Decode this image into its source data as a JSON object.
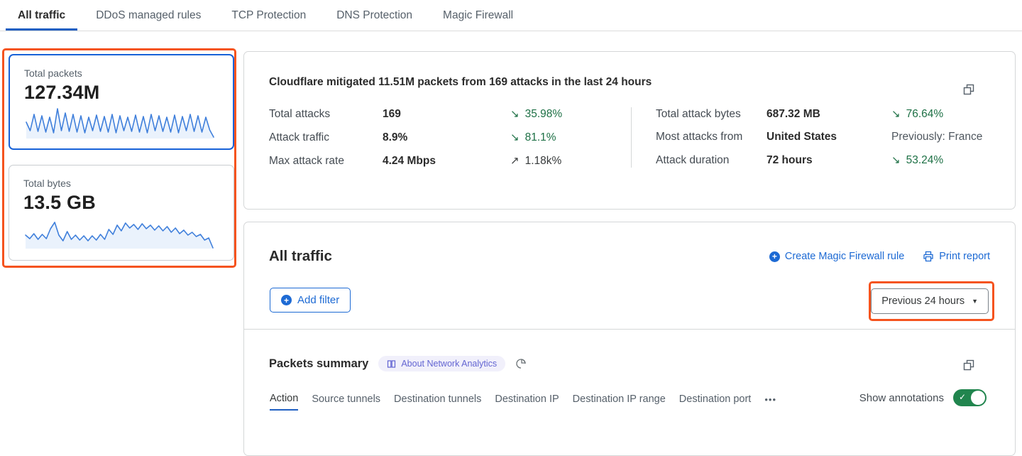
{
  "header": {
    "tabs": [
      {
        "label": "All traffic",
        "active": true
      },
      {
        "label": "DDoS managed rules",
        "active": false
      },
      {
        "label": "TCP Protection",
        "active": false
      },
      {
        "label": "DNS Protection",
        "active": false
      },
      {
        "label": "Magic Firewall",
        "active": false
      }
    ]
  },
  "sidebar": {
    "cards": [
      {
        "label": "Total packets",
        "value": "127.34M",
        "selected": true
      },
      {
        "label": "Total bytes",
        "value": "13.5 GB",
        "selected": false
      }
    ]
  },
  "summary": {
    "title": "Cloudflare mitigated 11.51M packets from 169 attacks in the last 24 hours",
    "stats": [
      {
        "label": "Total attacks",
        "value": "169",
        "arrow": "↘",
        "trend": "35.98%"
      },
      {
        "label": "Attack traffic",
        "value": "8.9%",
        "arrow": "↘",
        "trend": "81.1%"
      },
      {
        "label": "Max attack rate",
        "value": "4.24 Mbps",
        "arrow": "↗",
        "trend": "1.18k%"
      },
      {
        "label": "Total attack bytes",
        "value": "687.32 MB",
        "arrow": "↘",
        "trend": "76.64%"
      },
      {
        "label": "Most attacks from",
        "value": "United States",
        "arrow": "",
        "trend": "Previously: France"
      },
      {
        "label": "Attack duration",
        "value": "72 hours",
        "arrow": "↘",
        "trend": "53.24%"
      }
    ]
  },
  "traffic": {
    "title": "All traffic",
    "create_rule_label": "Create Magic Firewall rule",
    "print_label": "Print report",
    "add_filter_label": "Add filter",
    "time_range_label": "Previous 24 hours"
  },
  "packets": {
    "title": "Packets summary",
    "badge_label": "About Network Analytics",
    "subtabs": [
      {
        "label": "Action",
        "active": true
      },
      {
        "label": "Source tunnels",
        "active": false
      },
      {
        "label": "Destination tunnels",
        "active": false
      },
      {
        "label": "Destination IP",
        "active": false
      },
      {
        "label": "Destination IP range",
        "active": false
      },
      {
        "label": "Destination port",
        "active": false
      }
    ],
    "annotations_label": "Show annotations",
    "annotations_toggle": "on"
  },
  "icons": {
    "plus": "+",
    "caret_down": "▼",
    "more_dots": "•••",
    "check": "✓",
    "trend_down": "↘",
    "trend_up": "↗"
  },
  "colors": {
    "link_blue": "#1d6ad4",
    "tab_underline": "#1f5fc2",
    "annotation_orange": "#f5531e",
    "trend_green": "#1d7045",
    "toggle_green": "#21854e",
    "badge_purple": "#6365d2",
    "badge_bg": "#f1f0fb",
    "sparkline_blue": "#3f7fdb",
    "selected_card_border": "#1862d8"
  }
}
